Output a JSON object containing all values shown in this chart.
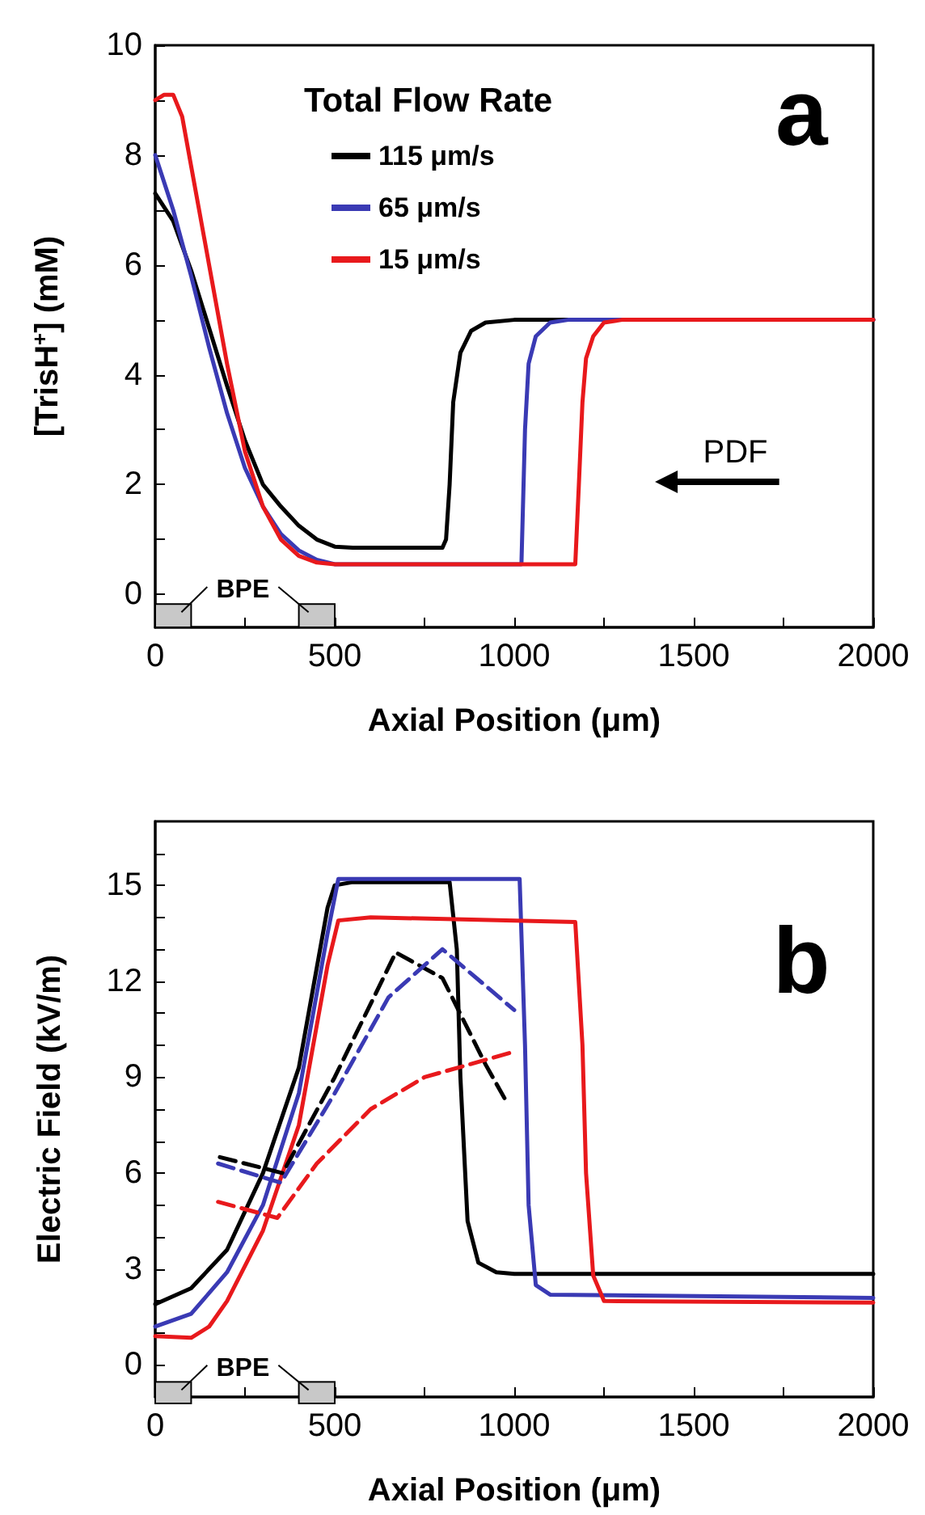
{
  "chart_data": [
    {
      "type": "line",
      "xlabel": "Axial Position (μm)",
      "ylabel": "[TrisH$^{+}$] (mM)",
      "legend_title": "Total Flow Rate",
      "legend": "top",
      "annotations": [
        "a",
        "PDF",
        "BPE"
      ],
      "marker": "none",
      "grid": false,
      "xlim": [
        0,
        2000
      ],
      "xticks": [
        0,
        {
          "value": 250,
          "label": null
        },
        500,
        {
          "value": 750,
          "label": null
        },
        1000,
        {
          "value": 1250,
          "label": null
        },
        1500,
        {
          "value": 1750,
          "label": null
        },
        2000
      ],
      "ylim": [
        -0.6,
        10
      ],
      "yticks": [
        0,
        {
          "value": 1,
          "label": null
        },
        2,
        {
          "value": 3,
          "label": null
        },
        4,
        {
          "value": 5,
          "label": null
        },
        6,
        {
          "value": 7,
          "label": null
        },
        8,
        {
          "value": 9,
          "label": null
        },
        10
      ],
      "series": [
        {
          "name": "115 μm/s",
          "color": "#000000",
          "x": [
            0,
            50,
            100,
            150,
            200,
            250,
            300,
            350,
            400,
            450,
            500,
            550,
            800,
            810,
            820,
            830,
            850,
            880,
            920,
            1000,
            2000
          ],
          "values": [
            7.3,
            6.8,
            5.9,
            4.85,
            3.8,
            2.8,
            2.0,
            1.6,
            1.25,
            1.0,
            0.87,
            0.85,
            0.85,
            1.0,
            2.0,
            3.5,
            4.4,
            4.8,
            4.95,
            5.0,
            5.0
          ]
        },
        {
          "name": "65 μm/s",
          "color": "#3a3ab4",
          "x": [
            0,
            50,
            100,
            150,
            200,
            250,
            300,
            350,
            400,
            450,
            500,
            1020,
            1030,
            1040,
            1060,
            1100,
            1150,
            2000
          ],
          "values": [
            8.0,
            7.0,
            5.8,
            4.5,
            3.3,
            2.3,
            1.6,
            1.1,
            0.8,
            0.63,
            0.55,
            0.55,
            3.0,
            4.2,
            4.7,
            4.95,
            5.0,
            5.0
          ]
        },
        {
          "name": "15 μm/s",
          "color": "#e8191c",
          "x": [
            0,
            25,
            50,
            75,
            100,
            150,
            200,
            250,
            300,
            350,
            400,
            450,
            500,
            1170,
            1180,
            1190,
            1200,
            1220,
            1250,
            1300,
            2000
          ],
          "values": [
            9.0,
            9.1,
            9.1,
            8.7,
            7.8,
            6.0,
            4.2,
            2.6,
            1.6,
            1.0,
            0.7,
            0.58,
            0.55,
            0.55,
            2.0,
            3.5,
            4.3,
            4.7,
            4.95,
            5.0,
            5.0
          ]
        }
      ]
    },
    {
      "type": "line",
      "xlabel": "Axial Position (μm)",
      "ylabel": "Electric Field (kV/m)",
      "annotations": [
        "b",
        "BPE"
      ],
      "marker": "none",
      "grid": false,
      "line_style": "solid",
      "xlim": [
        0,
        2000
      ],
      "xticks": [
        0,
        {
          "value": 250,
          "label": null
        },
        500,
        {
          "value": 750,
          "label": null
        },
        1000,
        {
          "value": 1250,
          "label": null
        },
        1500,
        {
          "value": 1750,
          "label": null
        },
        2000
      ],
      "ylim": [
        -1,
        17
      ],
      "yticks": [
        0,
        {
          "value": 1,
          "label": null
        },
        {
          "value": 2,
          "label": null
        },
        3,
        {
          "value": 4,
          "label": null
        },
        {
          "value": 5,
          "label": null
        },
        6,
        {
          "value": 7,
          "label": null
        },
        {
          "value": 8,
          "label": null
        },
        9,
        {
          "value": 10,
          "label": null
        },
        {
          "value": 11,
          "label": null
        },
        12,
        {
          "value": 13,
          "label": null
        },
        {
          "value": 14,
          "label": null
        },
        15,
        {
          "value": 16,
          "label": null
        }
      ],
      "series": [
        {
          "color": "#000000",
          "x": [
            0,
            100,
            200,
            300,
            400,
            480,
            500,
            550,
            820,
            840,
            850,
            870,
            900,
            950,
            1000,
            2000
          ],
          "values": [
            1.9,
            2.4,
            3.6,
            6.0,
            9.3,
            14.3,
            15.0,
            15.1,
            15.1,
            13,
            9,
            4.5,
            3.2,
            2.9,
            2.85,
            2.85
          ]
        },
        {
          "color": "#3a3ab4",
          "x": [
            0,
            100,
            200,
            300,
            400,
            480,
            510,
            1015,
            1030,
            1040,
            1060,
            1100,
            2000
          ],
          "values": [
            1.2,
            1.6,
            2.9,
            5.0,
            8.5,
            13.5,
            15.2,
            15.2,
            10,
            5,
            2.5,
            2.2,
            2.1
          ]
        },
        {
          "color": "#e8191c",
          "x": [
            0,
            100,
            150,
            200,
            300,
            400,
            480,
            510,
            600,
            1170,
            1190,
            1200,
            1220,
            1250,
            2000
          ],
          "values": [
            0.9,
            0.85,
            1.2,
            2.0,
            4.2,
            7.5,
            12.5,
            13.9,
            14.0,
            13.85,
            10,
            6,
            2.8,
            2.0,
            1.95
          ]
        },
        {
          "color": "#000000",
          "line_style": "dashed",
          "x": [
            180,
            355,
            500,
            670,
            800,
            920,
            975
          ],
          "values": [
            6.5,
            6.0,
            9.0,
            12.9,
            12.1,
            9.4,
            8.3
          ]
        },
        {
          "color": "#3a3ab4",
          "line_style": "dashed",
          "x": [
            175,
            350,
            500,
            650,
            800,
            1000
          ],
          "values": [
            6.3,
            5.7,
            8.5,
            11.5,
            13.0,
            11.1
          ]
        },
        {
          "color": "#e8191c",
          "line_style": "dashed",
          "x": [
            175,
            340,
            450,
            600,
            750,
            1000
          ],
          "values": [
            5.1,
            4.6,
            6.3,
            8.0,
            9.0,
            9.8
          ]
        }
      ]
    }
  ]
}
